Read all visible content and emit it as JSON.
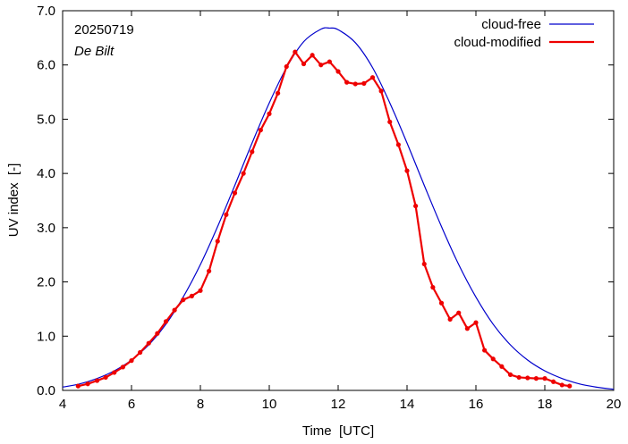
{
  "chart_data": {
    "type": "line",
    "annotations": [
      "20250719",
      "De Bilt"
    ],
    "xlabel": "Time  [UTC]",
    "ylabel": "UV index  [-]",
    "xlim": [
      4,
      20
    ],
    "ylim": [
      0,
      7
    ],
    "xticks": [
      4,
      6,
      8,
      10,
      12,
      14,
      16,
      18,
      20
    ],
    "xtick_labels": [
      "4",
      "6",
      "8",
      "10",
      "12",
      "14",
      "16",
      "18",
      "20"
    ],
    "yticks": [
      0,
      1,
      2,
      3,
      4,
      5,
      6,
      7
    ],
    "ytick_labels": [
      "0.0",
      "1.0",
      "2.0",
      "3.0",
      "4.0",
      "5.0",
      "6.0",
      "7.0"
    ],
    "grid": false,
    "legend_position": "top-right",
    "series": [
      {
        "name": "cloud-free",
        "color": "#0000cc",
        "markers": false,
        "x": [
          4.0,
          4.5,
          5.0,
          5.5,
          6.0,
          6.5,
          7.0,
          7.5,
          8.0,
          8.5,
          9.0,
          9.5,
          10.0,
          10.5,
          11.0,
          11.5,
          11.75,
          12.0,
          12.5,
          13.0,
          13.5,
          14.0,
          14.5,
          15.0,
          15.5,
          16.0,
          16.5,
          17.0,
          17.5,
          18.0,
          18.5,
          19.0,
          19.5,
          20.0
        ],
        "y": [
          0.06,
          0.12,
          0.22,
          0.36,
          0.56,
          0.84,
          1.22,
          1.72,
          2.32,
          3.02,
          3.78,
          4.56,
          5.3,
          5.95,
          6.43,
          6.66,
          6.68,
          6.65,
          6.41,
          5.95,
          5.3,
          4.56,
          3.78,
          3.02,
          2.32,
          1.72,
          1.22,
          0.84,
          0.56,
          0.36,
          0.22,
          0.12,
          0.06,
          0.02
        ]
      },
      {
        "name": "cloud-modified",
        "color": "#ee0000",
        "markers": true,
        "x": [
          4.45,
          4.73,
          5.0,
          5.25,
          5.5,
          5.75,
          6.0,
          6.25,
          6.5,
          6.75,
          7.0,
          7.25,
          7.5,
          7.75,
          8.0,
          8.25,
          8.5,
          8.75,
          9.0,
          9.25,
          9.5,
          9.75,
          10.0,
          10.25,
          10.5,
          10.75,
          11.0,
          11.25,
          11.5,
          11.75,
          12.0,
          12.25,
          12.5,
          12.75,
          13.0,
          13.25,
          13.5,
          13.75,
          14.0,
          14.25,
          14.5,
          14.75,
          15.0,
          15.25,
          15.5,
          15.75,
          16.0,
          16.25,
          16.5,
          16.75,
          17.0,
          17.25,
          17.5,
          17.75,
          18.0,
          18.25,
          18.5,
          18.72
        ],
        "y": [
          0.08,
          0.12,
          0.18,
          0.24,
          0.33,
          0.43,
          0.55,
          0.7,
          0.87,
          1.05,
          1.27,
          1.48,
          1.67,
          1.74,
          1.84,
          2.2,
          2.75,
          3.24,
          3.64,
          4.0,
          4.4,
          4.8,
          5.1,
          5.48,
          5.97,
          6.24,
          6.02,
          6.18,
          6.0,
          6.06,
          5.88,
          5.68,
          5.65,
          5.66,
          5.77,
          5.52,
          4.95,
          4.53,
          4.05,
          3.4,
          2.33,
          1.9,
          1.61,
          1.31,
          1.43,
          1.14,
          1.25,
          0.74,
          0.58,
          0.44,
          0.29,
          0.24,
          0.23,
          0.22,
          0.22,
          0.16,
          0.1,
          0.08
        ]
      }
    ]
  }
}
